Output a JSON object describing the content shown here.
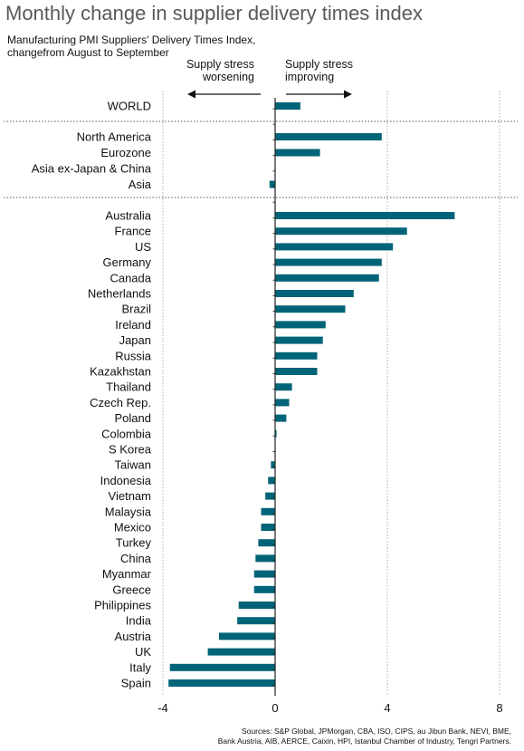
{
  "title": "Monthly change in supplier delivery times index",
  "subtitle_line1": "Manufacturing PMI Suppliers' Delivery Times Index,",
  "subtitle_line2": "changefrom August to September",
  "annotations": {
    "left": [
      "Supply stress",
      "worsening"
    ],
    "right": [
      "Supply stress",
      "improving"
    ]
  },
  "sources_line1": "Sources: S&P Global, JPMorgan, CBA, ISO, CIPS, au Jibun Bank, NEVI, BME,",
  "sources_line2": "Bank Austria, AIB, AERCE, Caixin, HPI, Istanbul Chamber of Industry, Tengri Partners.",
  "colors": {
    "bar": "#006478",
    "title": "#595959",
    "grid": "#9a9a9a"
  },
  "chart_data": {
    "type": "bar",
    "orientation": "horizontal",
    "xlim": [
      -4,
      8
    ],
    "xticks": [
      -4,
      0,
      4,
      8
    ],
    "grid": "vertical dotted",
    "groups": [
      {
        "categories": [
          "WORLD"
        ],
        "values": [
          0.9
        ]
      },
      {
        "categories": [
          "North America",
          "Eurozone",
          "Asia ex-Japan & China",
          "Asia"
        ],
        "values": [
          3.8,
          1.6,
          0.0,
          -0.2
        ]
      },
      {
        "categories": [
          "Australia",
          "France",
          "US",
          "Germany",
          "Canada",
          "Netherlands",
          "Brazil",
          "Ireland",
          "Japan",
          "Russia",
          "Kazakhstan",
          "Thailand",
          "Czech Rep.",
          "Poland",
          "Colombia",
          "S Korea",
          "Taiwan",
          "Indonesia",
          "Vietnam",
          "Malaysia",
          "Mexico",
          "Turkey",
          "China",
          "Myanmar",
          "Greece",
          "Philippines",
          "India",
          "Austria",
          "UK",
          "Italy",
          "Spain"
        ],
        "values": [
          6.4,
          4.7,
          4.2,
          3.8,
          3.7,
          2.8,
          2.5,
          1.8,
          1.7,
          1.5,
          1.5,
          0.6,
          0.5,
          0.4,
          0.05,
          0.0,
          -0.15,
          -0.25,
          -0.35,
          -0.5,
          -0.5,
          -0.6,
          -0.7,
          -0.75,
          -0.75,
          -1.3,
          -1.35,
          -2.0,
          -2.4,
          -3.75,
          -3.8
        ]
      }
    ]
  }
}
